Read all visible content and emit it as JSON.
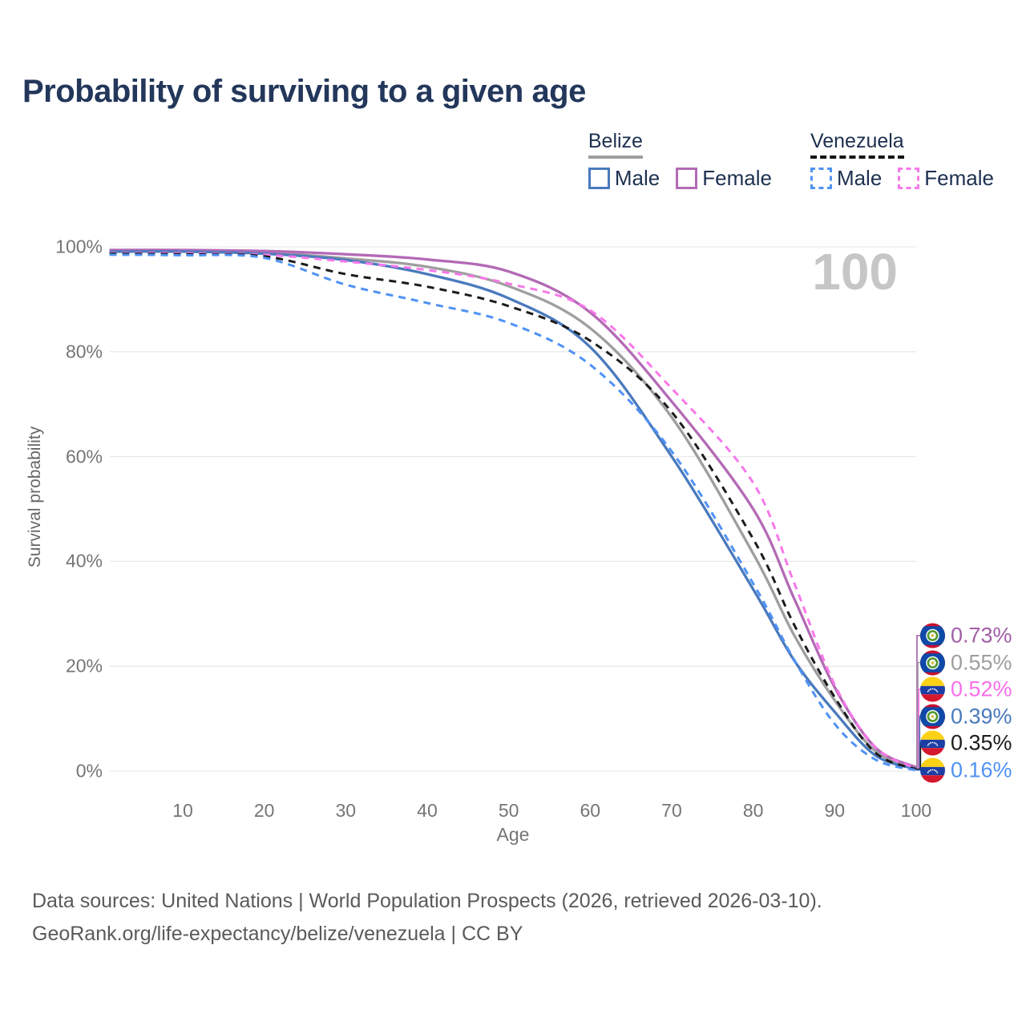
{
  "title": "Probability of surviving to a given age",
  "watermark": "100",
  "legend": {
    "groups": [
      {
        "name": "Belize",
        "line_style": "solid",
        "underline_color": "#9e9e9e",
        "items": [
          {
            "label": "Male",
            "color": "#4a7abd",
            "dashed": false
          },
          {
            "label": "Female",
            "color": "#b36ab5",
            "dashed": false
          }
        ]
      },
      {
        "name": "Venezuela",
        "line_style": "dashed",
        "underline_color": "#141414",
        "items": [
          {
            "label": "Male",
            "color": "#4f92f5",
            "dashed": true
          },
          {
            "label": "Female",
            "color": "#f878ea",
            "dashed": true
          }
        ]
      }
    ]
  },
  "chart_data": {
    "type": "line",
    "title": "Probability of surviving to a given age",
    "xlabel": "Age",
    "ylabel": "Survival probability",
    "xlim": [
      1,
      100
    ],
    "ylim": [
      0,
      100
    ],
    "grid": "horizontal",
    "x_ticks": [
      10,
      20,
      30,
      40,
      50,
      60,
      70,
      80,
      90,
      100
    ],
    "y_ticks": [
      0,
      20,
      40,
      60,
      80,
      100
    ],
    "y_tick_labels": [
      "0%",
      "20%",
      "40%",
      "60%",
      "80%",
      "100%"
    ],
    "hover_age_indicator": "100",
    "x": [
      1,
      10,
      20,
      30,
      40,
      50,
      60,
      70,
      80,
      85,
      90,
      95,
      100
    ],
    "series": [
      {
        "name": "Belize (both sexes)",
        "color": "#9e9e9e",
        "dashed": false,
        "values": [
          99.2,
          99.2,
          98.9,
          97.8,
          96.2,
          92.5,
          84.5,
          67.5,
          41.5,
          26.0,
          13.5,
          3.8,
          0.55
        ]
      },
      {
        "name": "Belize Female",
        "color": "#b36ab5",
        "dashed": false,
        "values": [
          99.4,
          99.4,
          99.2,
          98.6,
          97.6,
          95.3,
          87.5,
          70.5,
          50.0,
          33.0,
          16.0,
          4.5,
          0.73
        ]
      },
      {
        "name": "Belize Male",
        "color": "#4a7abd",
        "dashed": false,
        "values": [
          99.1,
          99.1,
          98.7,
          97.5,
          94.8,
          90.2,
          80.9,
          60.0,
          34.7,
          21.2,
          11.3,
          3.0,
          0.39
        ]
      },
      {
        "name": "Venezuela Female",
        "color": "#f878ea",
        "dashed": true,
        "values": [
          98.8,
          98.8,
          98.5,
          97.2,
          95.6,
          93.0,
          87.9,
          73.0,
          55.0,
          36.0,
          16.5,
          4.6,
          0.52
        ]
      },
      {
        "name": "Venezuela (both sexes)",
        "color": "#1c1c1c",
        "dashed": true,
        "values": [
          98.7,
          98.6,
          98.2,
          94.8,
          92.4,
          88.7,
          82.1,
          68.5,
          44.3,
          28.0,
          14.1,
          3.5,
          0.35
        ]
      },
      {
        "name": "Venezuela Male",
        "color": "#4f92f5",
        "dashed": true,
        "values": [
          98.5,
          98.4,
          97.9,
          92.8,
          89.3,
          85.5,
          77.5,
          61.0,
          35.8,
          21.3,
          9.0,
          2.2,
          0.16
        ]
      }
    ],
    "end_labels": [
      {
        "text": "0.73%",
        "color": "#a05ea6",
        "flag": "belize",
        "series_index": 1
      },
      {
        "text": "0.55%",
        "color": "#9e9e9e",
        "flag": "belize",
        "series_index": 0
      },
      {
        "text": "0.52%",
        "color": "#f86ee9",
        "flag": "venezuela",
        "series_index": 3
      },
      {
        "text": "0.39%",
        "color": "#4a7abd",
        "flag": "belize",
        "series_index": 2
      },
      {
        "text": "0.35%",
        "color": "#1c1c1c",
        "flag": "venezuela",
        "series_index": 4
      },
      {
        "text": "0.16%",
        "color": "#4f92f5",
        "flag": "venezuela",
        "series_index": 5
      }
    ]
  },
  "footer": {
    "line1": "Data sources: United Nations | World Population Prospects (2026, retrieved 2026-03-10).",
    "line2": "GeoRank.org/life-expectancy/belize/venezuela | CC BY"
  }
}
